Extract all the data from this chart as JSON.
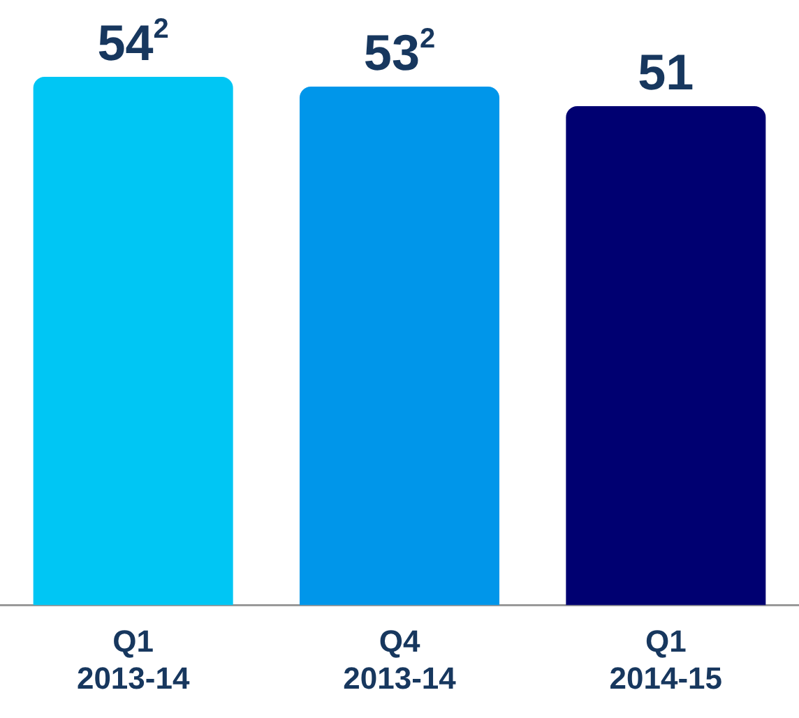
{
  "chart_data": {
    "type": "bar",
    "categories": [
      "Q1 2013-14",
      "Q4 2013-14",
      "Q1 2014-15"
    ],
    "values": [
      54,
      53,
      51
    ],
    "colors": [
      "#00c6f4",
      "#0096ea",
      "#000071"
    ],
    "value_labels": [
      "54$^{2}$",
      "53$^{2}$",
      "51"
    ],
    "grid": false,
    "legend": false
  }
}
